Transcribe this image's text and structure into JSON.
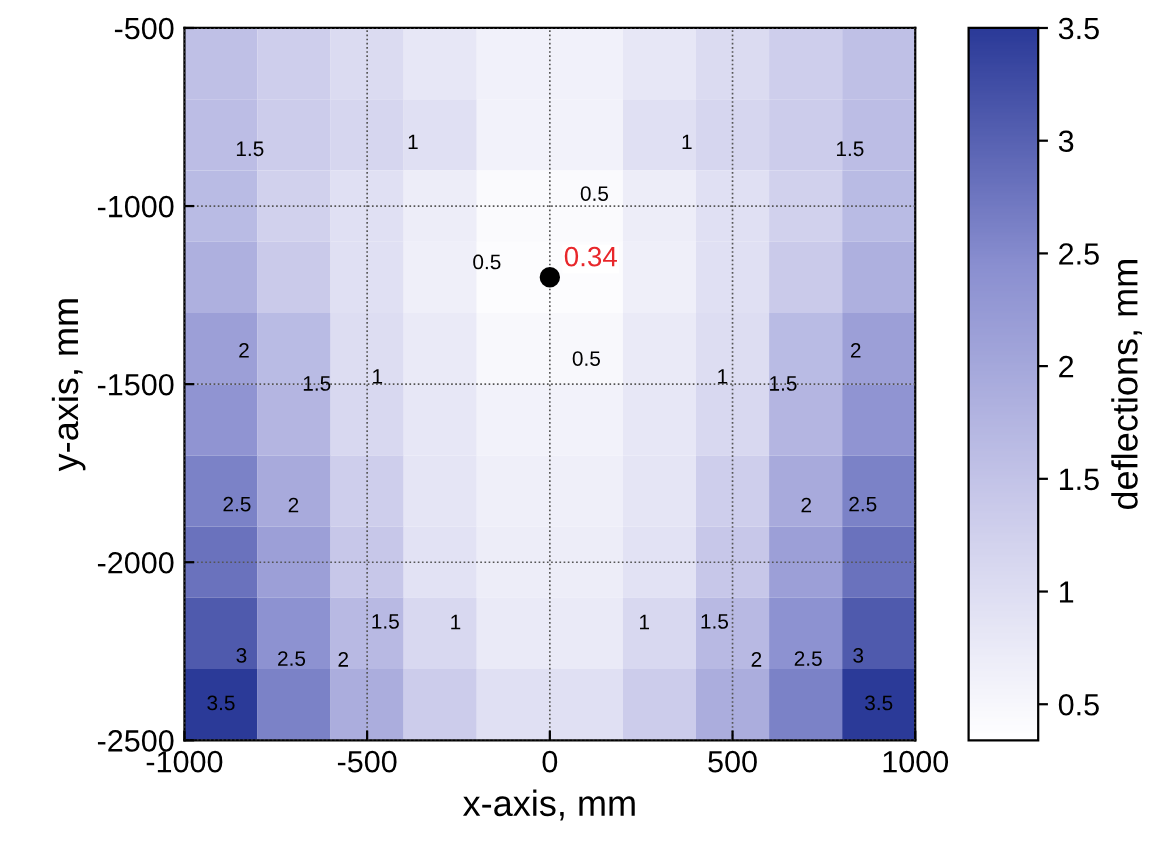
{
  "chart_data": {
    "type": "heatmap",
    "xlabel": "x-axis, mm",
    "ylabel": "y-axis, mm",
    "clabel": "deflections, mm",
    "x": [
      -900,
      -700,
      -500,
      -300,
      -100,
      100,
      300,
      500,
      700,
      900
    ],
    "y": [
      -600,
      -800,
      -1000,
      -1200,
      -1400,
      -1600,
      -1800,
      -2000,
      -2200,
      -2400
    ],
    "cells": [
      [
        1.55,
        1.3,
        1.05,
        0.8,
        0.62,
        0.62,
        0.8,
        1.05,
        1.3,
        1.55
      ],
      [
        1.6,
        1.35,
        1.15,
        0.95,
        0.6,
        0.6,
        0.95,
        1.15,
        1.35,
        1.6
      ],
      [
        1.65,
        1.25,
        0.95,
        0.7,
        0.45,
        0.45,
        0.7,
        0.95,
        1.25,
        1.65
      ],
      [
        1.85,
        1.38,
        0.95,
        0.65,
        0.4,
        0.4,
        0.65,
        0.95,
        1.38,
        1.85
      ],
      [
        2.15,
        1.65,
        1.0,
        0.75,
        0.48,
        0.48,
        0.75,
        1.0,
        1.65,
        2.15
      ],
      [
        2.35,
        1.75,
        1.1,
        0.8,
        0.6,
        0.6,
        0.8,
        1.1,
        1.75,
        2.35
      ],
      [
        2.6,
        1.95,
        1.3,
        0.85,
        0.65,
        0.65,
        0.85,
        1.3,
        1.95,
        2.6
      ],
      [
        2.8,
        2.15,
        1.43,
        0.9,
        0.7,
        0.7,
        0.9,
        1.43,
        2.15,
        2.8
      ],
      [
        3.1,
        2.4,
        1.68,
        1.1,
        0.75,
        0.75,
        1.1,
        1.68,
        2.4,
        3.1
      ],
      [
        3.5,
        2.6,
        1.9,
        1.35,
        0.95,
        0.95,
        1.35,
        1.9,
        2.6,
        3.5
      ]
    ],
    "clim": [
      0.34,
      3.5
    ],
    "cticks": [
      0.5,
      1,
      1.5,
      2,
      2.5,
      3,
      3.5
    ],
    "xlim": [
      -1000,
      1000
    ],
    "xticks": [
      -1000,
      -500,
      0,
      500,
      1000
    ],
    "ylim": [
      -2500,
      -500
    ],
    "yticks": [
      -2500,
      -2000,
      -1500,
      -1000,
      -500
    ],
    "grid": true,
    "series": [
      {
        "type": "scatter",
        "x": [
          0
        ],
        "values": [
          -1200
        ],
        "color": "#000000",
        "marker": "circle"
      }
    ],
    "annotations": [
      {
        "text": "0.34",
        "x": 0,
        "y": -1200
      },
      "1.5",
      "1",
      "1",
      "1.5",
      "2",
      "2",
      "0.5",
      "0.5",
      "0.5",
      "1",
      "1",
      "1.5",
      "1.5",
      "2.5",
      "2",
      "2",
      "2.5",
      "1",
      "1",
      "3",
      "1.5",
      "1.5",
      "3",
      "2.5",
      "2.5",
      "3.5",
      "3.5",
      "2",
      "2"
    ]
  }
}
